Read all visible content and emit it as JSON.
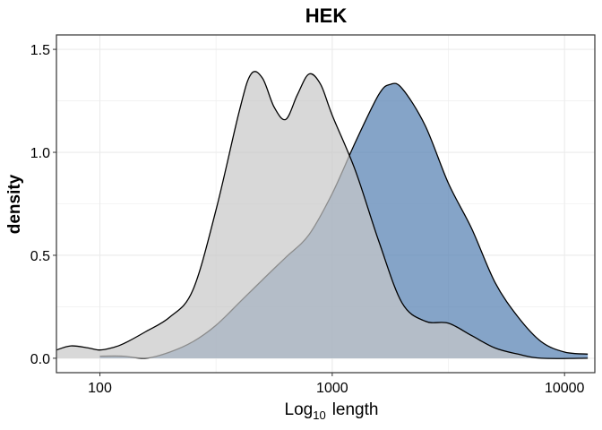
{
  "chart_data": {
    "type": "area",
    "title": "HEK",
    "xlabel": {
      "main": "Log",
      "subscript": "10",
      "rest": "length"
    },
    "ylabel": "density",
    "x_scale": "log10",
    "xlim": [
      65,
      13500
    ],
    "ylim": [
      -0.07,
      1.57
    ],
    "x_ticks": [
      100,
      1000,
      10000
    ],
    "x_tick_labels": [
      "100",
      "1000",
      "10000"
    ],
    "x_minor_ticks": [
      316,
      3162
    ],
    "y_ticks": [
      0.0,
      0.5,
      1.0,
      1.5
    ],
    "y_tick_labels": [
      "0.0",
      "0.5",
      "1.0",
      "1.5"
    ],
    "y_minor_ticks": [
      0.25,
      0.75,
      1.25
    ],
    "grid": true,
    "legend": "none",
    "colors": {
      "blue_fill": "#5c86b5",
      "grey_fill": "#c8c8c8",
      "panel_border": "#333333",
      "grid": "#ebebeb"
    },
    "series": [
      {
        "color": "#5c86b5",
        "opacity": 0.75,
        "points": [
          [
            100,
            0.01
          ],
          [
            126,
            0.01
          ],
          [
            158,
            0.0
          ],
          [
            200,
            0.03
          ],
          [
            251,
            0.08
          ],
          [
            316,
            0.16
          ],
          [
            398,
            0.27
          ],
          [
            500,
            0.38
          ],
          [
            631,
            0.49
          ],
          [
            794,
            0.6
          ],
          [
            1000,
            0.8
          ],
          [
            1259,
            1.05
          ],
          [
            1585,
            1.28
          ],
          [
            1778,
            1.33
          ],
          [
            2000,
            1.31
          ],
          [
            2512,
            1.13
          ],
          [
            3162,
            0.85
          ],
          [
            3981,
            0.63
          ],
          [
            5012,
            0.37
          ],
          [
            6310,
            0.2
          ],
          [
            7943,
            0.08
          ],
          [
            10000,
            0.03
          ],
          [
            12589,
            0.02
          ]
        ]
      },
      {
        "color": "#c8c8c8",
        "opacity": 0.7,
        "points": [
          [
            65,
            0.04
          ],
          [
            75,
            0.06
          ],
          [
            89,
            0.05
          ],
          [
            100,
            0.04
          ],
          [
            112,
            0.05
          ],
          [
            126,
            0.07
          ],
          [
            158,
            0.13
          ],
          [
            200,
            0.2
          ],
          [
            251,
            0.33
          ],
          [
            316,
            0.72
          ],
          [
            398,
            1.2
          ],
          [
            447,
            1.38
          ],
          [
            501,
            1.36
          ],
          [
            562,
            1.22
          ],
          [
            631,
            1.16
          ],
          [
            708,
            1.28
          ],
          [
            794,
            1.38
          ],
          [
            891,
            1.33
          ],
          [
            1000,
            1.18
          ],
          [
            1259,
            0.91
          ],
          [
            1585,
            0.57
          ],
          [
            1995,
            0.27
          ],
          [
            2512,
            0.18
          ],
          [
            3162,
            0.17
          ],
          [
            3981,
            0.11
          ],
          [
            5012,
            0.05
          ],
          [
            6310,
            0.02
          ],
          [
            7943,
            0.0
          ],
          [
            12589,
            0.0
          ]
        ]
      }
    ]
  }
}
